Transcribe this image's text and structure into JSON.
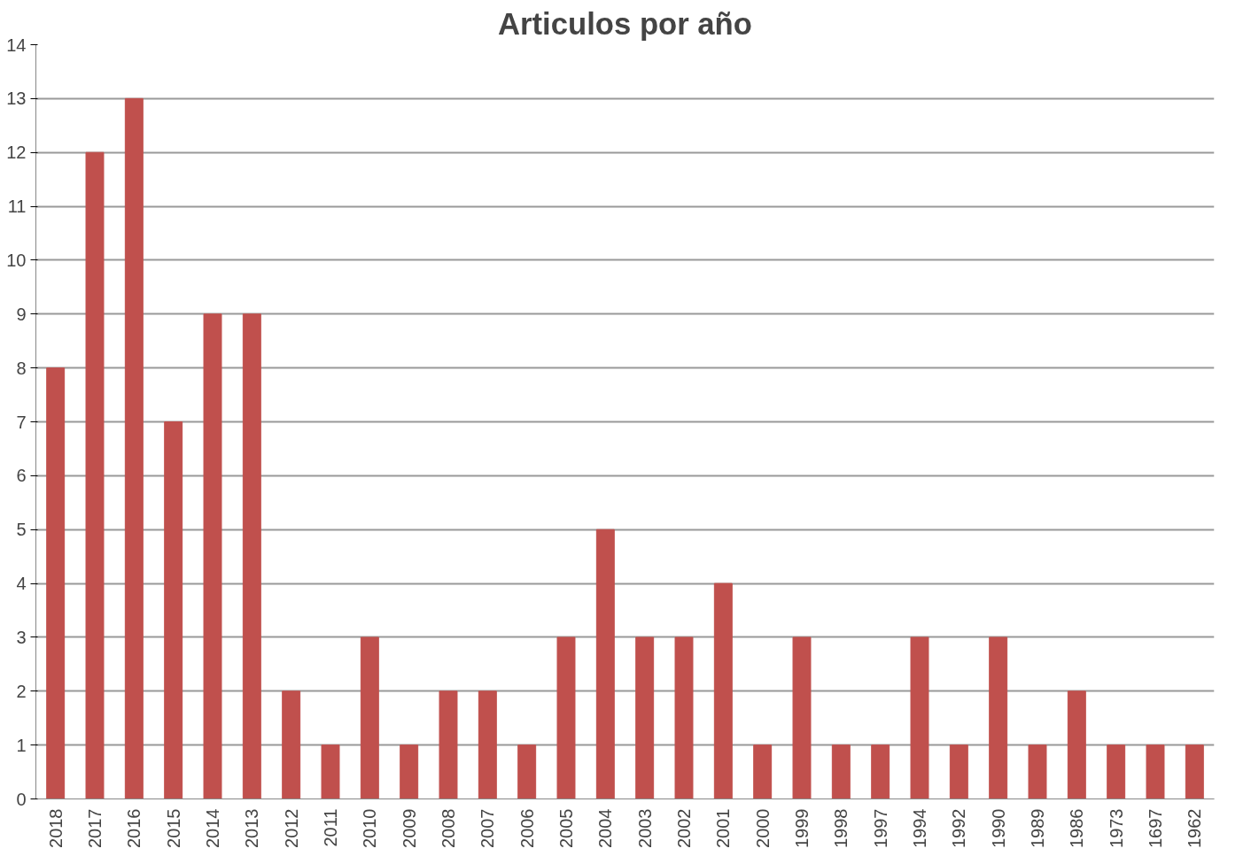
{
  "chart_data": {
    "type": "bar",
    "title": "Articulos por año",
    "categories": [
      "2018",
      "2017",
      "2016",
      "2015",
      "2014",
      "2013",
      "2012",
      "2011",
      "2010",
      "2009",
      "2008",
      "2007",
      "2006",
      "2005",
      "2004",
      "2003",
      "2002",
      "2001",
      "2000",
      "1999",
      "1998",
      "1997",
      "1994",
      "1992",
      "1990",
      "1989",
      "1986",
      "1973",
      "1697",
      "1962"
    ],
    "values": [
      8,
      12,
      13,
      7,
      9,
      9,
      2,
      1,
      3,
      1,
      2,
      2,
      1,
      3,
      5,
      3,
      3,
      4,
      1,
      3,
      1,
      1,
      3,
      1,
      3,
      1,
      2,
      1,
      1,
      1
    ],
    "color": "#c0504d",
    "ylim": [
      0,
      14
    ],
    "yticks": [
      0,
      1,
      2,
      3,
      4,
      5,
      6,
      7,
      8,
      9,
      10,
      11,
      12,
      13,
      14
    ],
    "grid": "y"
  }
}
